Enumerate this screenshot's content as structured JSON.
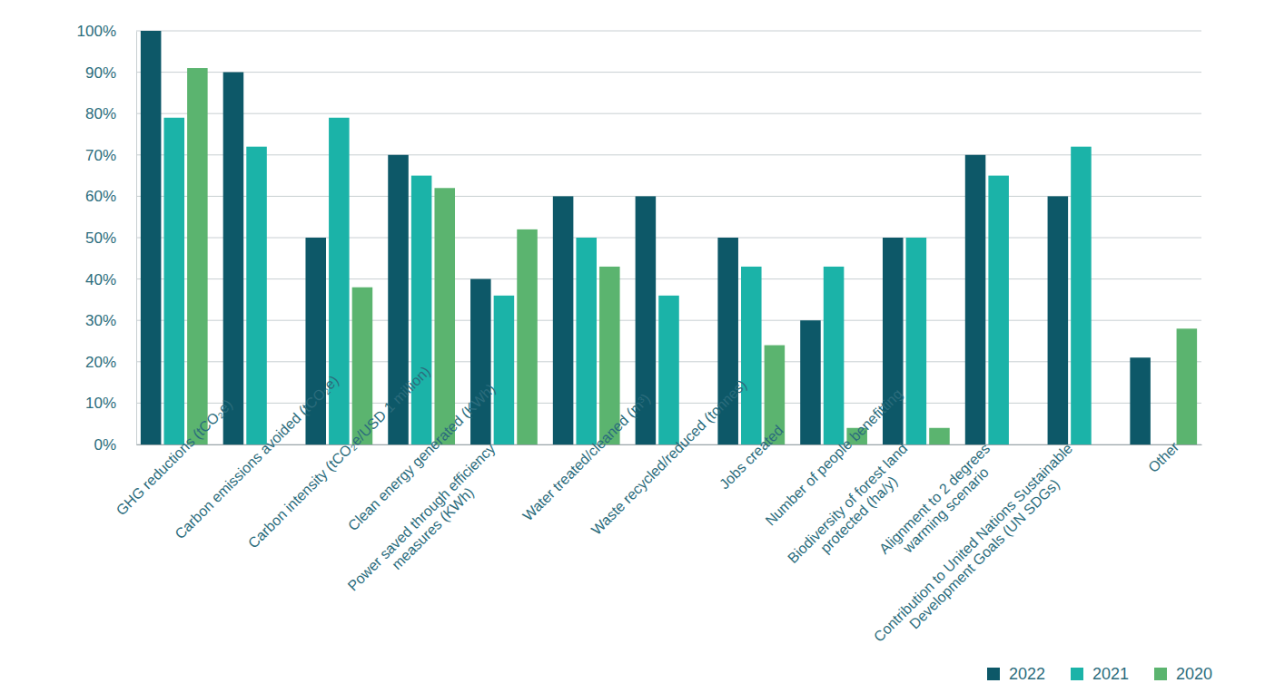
{
  "chart_data": {
    "type": "bar",
    "categories": [
      "GHG reductions (tCO₂e)",
      "Carbon emissions avoided (tCO₂e)",
      "Carbon intensity (tCO₂e/USD 1 million)",
      "Clean energy generated (KWh)",
      "Power saved through efficiency\nmeasures (KWh)",
      "Water treated/cleaned (m³)",
      "Waste recycled/reduced (tonnes)",
      "Jobs created",
      "Number of people benefitting",
      "Biodiversity of forest land\nprotected (ha/y)",
      "Alignment to 2 degrees\nwarming scenario",
      "Contribution to United Nations Sustainable\nDevelopment Goals (UN SDGs)",
      "Other"
    ],
    "series": [
      {
        "name": "2022",
        "color": "#0d5868",
        "values": [
          100,
          90,
          50,
          70,
          40,
          60,
          60,
          50,
          30,
          50,
          70,
          60,
          21
        ]
      },
      {
        "name": "2021",
        "color": "#1bb3a8",
        "values": [
          79,
          72,
          79,
          65,
          36,
          50,
          36,
          43,
          43,
          50,
          65,
          72,
          null
        ]
      },
      {
        "name": "2020",
        "color": "#5bb46f",
        "values": [
          91,
          null,
          38,
          62,
          52,
          43,
          null,
          24,
          4,
          4,
          null,
          null,
          28
        ]
      }
    ],
    "ylim": [
      0,
      100
    ],
    "yticks": [
      {
        "value": 0,
        "label": "0%"
      },
      {
        "value": 10,
        "label": "10%"
      },
      {
        "value": 20,
        "label": "20%"
      },
      {
        "value": 30,
        "label": "30%"
      },
      {
        "value": 40,
        "label": "40%"
      },
      {
        "value": 50,
        "label": "50%"
      },
      {
        "value": 60,
        "label": "60%"
      },
      {
        "value": 70,
        "label": "70%"
      },
      {
        "value": 80,
        "label": "80%"
      },
      {
        "value": 90,
        "label": "90%"
      },
      {
        "value": 100,
        "label": "100%"
      }
    ],
    "grid": true,
    "legend": "bottom-right"
  }
}
